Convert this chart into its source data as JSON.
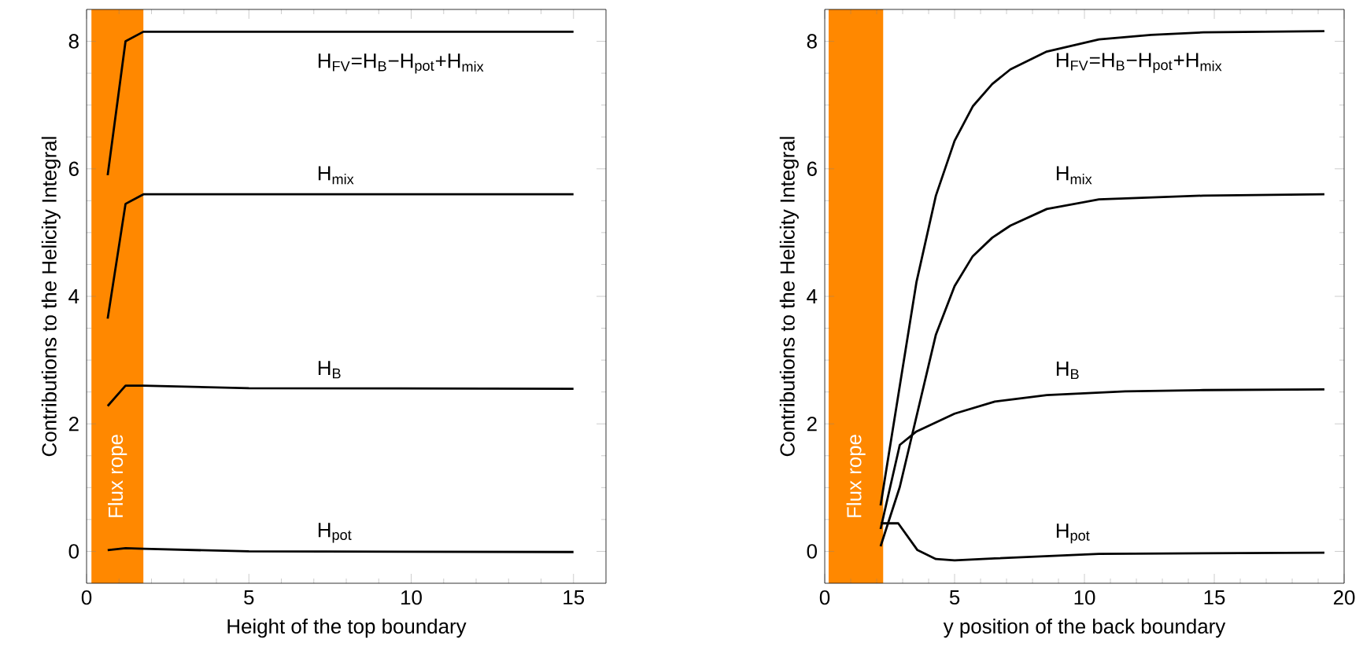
{
  "chart_data": [
    {
      "type": "line",
      "xlabel": "Height of the top boundary",
      "ylabel": "Contributions to the Helicity Integral",
      "xlim": [
        0,
        16
      ],
      "ylim": [
        -0.5,
        8.5
      ],
      "xticks": [
        0,
        5,
        10,
        15
      ],
      "yticks": [
        0,
        2,
        4,
        6,
        8
      ],
      "bands": [
        {
          "axis": "x",
          "from": 0.15,
          "to": 1.75,
          "label": "Flux rope",
          "color": "#ff8800"
        }
      ],
      "series": [
        {
          "name": "H$_{FV}$=H$_{B}$−H$_{pot}$+H$_{mix}$",
          "color": "#000000",
          "x": [
            0.65,
            1.2,
            1.75,
            15
          ],
          "values": [
            5.9,
            8.0,
            8.15,
            8.15
          ]
        },
        {
          "name": "H$_{mix}$",
          "color": "#000000",
          "x": [
            0.65,
            1.2,
            1.75,
            15
          ],
          "values": [
            3.65,
            5.45,
            5.6,
            5.6
          ]
        },
        {
          "name": "H$_{B}$",
          "color": "#000000",
          "x": [
            0.65,
            1.2,
            1.75,
            5,
            15
          ],
          "values": [
            2.28,
            2.6,
            2.6,
            2.56,
            2.55
          ]
        },
        {
          "name": "H$_{pot}$",
          "color": "#000000",
          "x": [
            0.65,
            1.2,
            1.75,
            5,
            15
          ],
          "values": [
            0.02,
            0.05,
            0.04,
            0.0,
            -0.01
          ]
        }
      ]
    },
    {
      "type": "line",
      "xlabel": "y position of the back boundary",
      "ylabel": "Contributions to the Helicity Integral",
      "xlim": [
        0,
        20
      ],
      "ylim": [
        -0.5,
        8.5
      ],
      "xticks": [
        0,
        5,
        10,
        15,
        20
      ],
      "yticks": [
        0,
        2,
        4,
        6,
        8
      ],
      "bands": [
        {
          "axis": "x",
          "from": 0.15,
          "to": 2.25,
          "label": "Flux rope",
          "color": "#ff8800"
        }
      ],
      "series": [
        {
          "name": "H$_{FV}$=H$_{B}$−H$_{pot}$+H$_{mix}$",
          "color": "#000000",
          "x": [
            2.15,
            3.53,
            4.28,
            5,
            5.7,
            6.45,
            7.15,
            8.55,
            10.56,
            12.57,
            14.58,
            19.24
          ],
          "values": [
            0.72,
            4.22,
            5.58,
            6.44,
            6.98,
            7.33,
            7.56,
            7.84,
            8.03,
            8.1,
            8.14,
            8.16
          ]
        },
        {
          "name": "H$_{mix}$",
          "color": "#000000",
          "x": [
            2.15,
            2.89,
            4.28,
            5,
            5.7,
            6.45,
            7.15,
            8.55,
            10.56,
            14.58,
            19.24
          ],
          "values": [
            0.08,
            1.01,
            3.4,
            4.16,
            4.63,
            4.92,
            5.11,
            5.37,
            5.52,
            5.58,
            5.6
          ]
        },
        {
          "name": "H$_{B}$",
          "color": "#000000",
          "x": [
            2.15,
            2.89,
            3.53,
            5,
            6.55,
            8.55,
            11.57,
            14.58,
            19.24
          ],
          "values": [
            0.35,
            1.67,
            1.88,
            2.16,
            2.35,
            2.45,
            2.51,
            2.53,
            2.54
          ]
        },
        {
          "name": "H$_{pot}$",
          "color": "#000000",
          "x": [
            2.15,
            2.83,
            3.57,
            4.28,
            5,
            6.55,
            10.56,
            19.24
          ],
          "values": [
            0.44,
            0.44,
            0.02,
            -0.12,
            -0.14,
            -0.11,
            -0.04,
            -0.02
          ]
        }
      ]
    }
  ]
}
